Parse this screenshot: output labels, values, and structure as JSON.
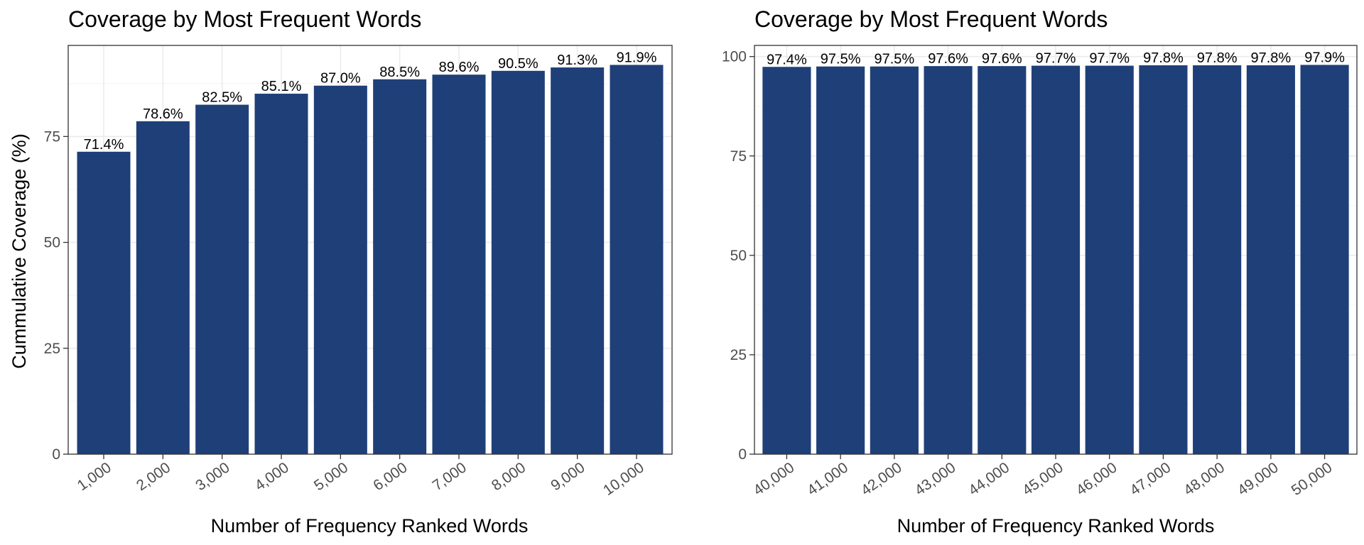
{
  "chart_data": [
    {
      "type": "bar",
      "title": "Coverage by Most Frequent Words",
      "xlabel": "Number of Frequency Ranked Words",
      "ylabel": "Cummulative Coverage (%)",
      "categories": [
        "1,000",
        "2,000",
        "3,000",
        "4,000",
        "5,000",
        "6,000",
        "7,000",
        "8,000",
        "9,000",
        "10,000"
      ],
      "values": [
        71.4,
        78.6,
        82.5,
        85.1,
        87.0,
        88.5,
        89.6,
        90.5,
        91.3,
        91.9
      ],
      "data_labels": [
        "71.4%",
        "78.6%",
        "82.5%",
        "85.1%",
        "87.0%",
        "88.5%",
        "89.6%",
        "90.5%",
        "91.3%",
        "91.9%"
      ],
      "ylim": [
        0,
        96.5
      ],
      "yticks": [
        0,
        25,
        50,
        75
      ],
      "ytick_labels": [
        "0",
        "25",
        "50",
        "75"
      ],
      "grid": true,
      "bar_color": "#1f3f78"
    },
    {
      "type": "bar",
      "title": "Coverage by Most Frequent Words",
      "xlabel": "Number of Frequency Ranked Words",
      "ylabel": "",
      "categories": [
        "40,000",
        "41,000",
        "42,000",
        "43,000",
        "44,000",
        "45,000",
        "46,000",
        "47,000",
        "48,000",
        "49,000",
        "50,000"
      ],
      "values": [
        97.4,
        97.5,
        97.5,
        97.6,
        97.6,
        97.7,
        97.7,
        97.8,
        97.8,
        97.8,
        97.9
      ],
      "data_labels": [
        "97.4%",
        "97.5%",
        "97.5%",
        "97.6%",
        "97.6%",
        "97.7%",
        "97.7%",
        "97.8%",
        "97.8%",
        "97.8%",
        "97.9%"
      ],
      "ylim": [
        0,
        102.8
      ],
      "yticks": [
        0,
        25,
        50,
        75,
        100
      ],
      "ytick_labels": [
        "0",
        "25",
        "50",
        "75",
        "100"
      ],
      "grid": true,
      "bar_color": "#1f3f78"
    }
  ]
}
